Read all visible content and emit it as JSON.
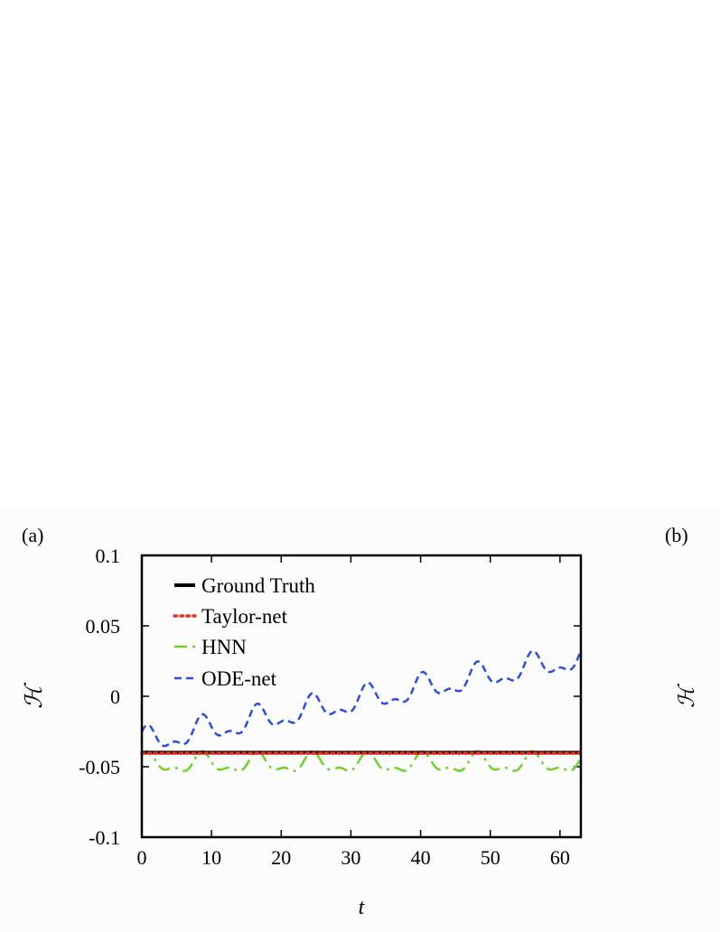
{
  "panel_labels": {
    "a": "(a)",
    "b": "(b)"
  },
  "chart_data": [
    {
      "type": "line",
      "panel": "(a)",
      "xlabel": "t",
      "ylabel": "ℋ",
      "xlim": [
        0,
        63
      ],
      "ylim": [
        -0.1,
        0.1
      ],
      "xticks": [
        "0",
        "10",
        "20",
        "30",
        "40",
        "50",
        "60"
      ],
      "yticks": [
        "0.1",
        "0.05",
        "0",
        "-0.05",
        "-0.1"
      ],
      "legend_position": "top-left",
      "colors": {
        "ground_truth": "#000000",
        "taylor_net": "#e8331f",
        "hnn": "#6fd32c",
        "ode_net": "#2b4fe0"
      },
      "series": [
        {
          "name": "Ground Truth",
          "style": "solid",
          "model": {
            "offset": -0.04,
            "drift": 0,
            "amplitude": 0
          },
          "x": [
            0,
            63
          ],
          "y": [
            -0.04,
            -0.04
          ]
        },
        {
          "name": "Taylor-net",
          "style": "dotted",
          "model": {
            "offset": -0.0405,
            "drift": 0,
            "amplitude": 0
          },
          "x": [
            0,
            63
          ],
          "y": [
            -0.0405,
            -0.0405
          ]
        },
        {
          "name": "HNN",
          "style": "dash-dot",
          "model": {
            "offset": -0.048,
            "drift": 0,
            "amplitude": 0.009,
            "period": 7.9
          },
          "x": [
            0,
            2,
            4,
            6,
            8,
            10,
            12,
            14,
            16,
            18,
            20,
            22,
            24,
            26,
            28,
            30,
            32,
            34,
            36,
            38,
            40,
            42,
            44,
            46,
            48,
            50,
            52,
            54,
            56,
            58,
            60,
            62
          ],
          "y": [
            -0.048,
            -0.057,
            -0.044,
            -0.039,
            -0.053,
            -0.055,
            -0.041,
            -0.04,
            -0.056,
            -0.052,
            -0.039,
            -0.043,
            -0.057,
            -0.049,
            -0.039,
            -0.047,
            -0.057,
            -0.045,
            -0.039,
            -0.051,
            -0.056,
            -0.042,
            -0.04,
            -0.055,
            -0.053,
            -0.039,
            -0.042,
            -0.057,
            -0.05,
            -0.039,
            -0.046,
            -0.057
          ]
        },
        {
          "name": "ODE-net",
          "style": "dashed",
          "model": {
            "offset": -0.033,
            "drift": 0.00095,
            "amplitude": 0.012,
            "period": 7.9
          },
          "x": [
            0,
            1,
            3,
            5,
            7,
            9,
            11,
            13,
            15,
            17,
            19,
            21,
            23,
            25,
            27,
            29,
            31,
            33,
            35,
            37,
            39,
            41,
            43,
            45,
            47,
            49,
            51,
            53,
            55,
            57,
            59,
            61,
            63
          ],
          "y": [
            -0.038,
            -0.015,
            -0.035,
            -0.027,
            -0.042,
            -0.008,
            -0.03,
            -0.021,
            -0.036,
            0.0,
            -0.023,
            -0.014,
            -0.028,
            0.007,
            -0.015,
            -0.008,
            -0.022,
            0.015,
            -0.006,
            0.002,
            -0.012,
            0.024,
            0.002,
            0.008,
            -0.003,
            0.032,
            0.01,
            0.016,
            0.04,
            0.019,
            0.028,
            0.013,
            0.038
          ]
        }
      ]
    }
  ]
}
